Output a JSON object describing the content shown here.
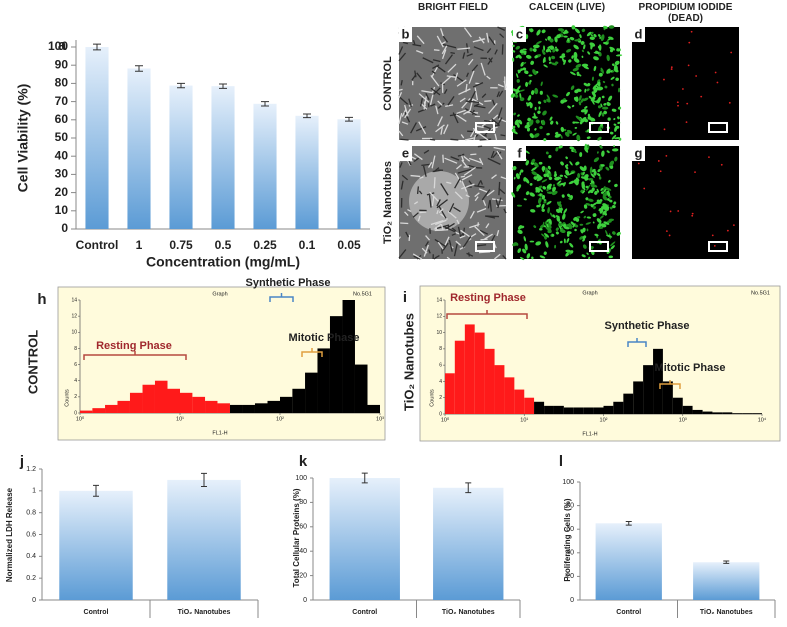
{
  "chart_data": [
    {
      "type": "bar",
      "panel": "a",
      "categories": [
        "Control",
        "1",
        "0.75",
        "0.5",
        "0.25",
        "0.1",
        "0.05"
      ],
      "values": [
        100,
        88.2,
        78.8,
        78.5,
        68.8,
        62.2,
        60.3
      ],
      "errors": [
        1.6,
        1.5,
        1.2,
        1.2,
        1.2,
        1,
        1
      ],
      "color": "#5b9bd5",
      "xlabel": "Concentration (mg/mL)",
      "ylabel": "Cell Viability (%)",
      "ylim": [
        0,
        100
      ],
      "yticks": [
        0,
        10,
        20,
        30,
        40,
        50,
        60,
        70,
        80,
        90,
        100
      ]
    },
    {
      "type": "histogram",
      "panel": "h",
      "side_label": "CONTROL",
      "header": "Graph",
      "sample": "No.5G1",
      "xlabel": "FL1-H",
      "ylabel": "Counts",
      "xscale": "log",
      "xlim": [
        1,
        1000
      ],
      "xticks": [
        {
          "value": 1,
          "label": "10⁰"
        },
        {
          "value": 10,
          "label": "10¹"
        },
        {
          "value": 100,
          "label": "10²"
        },
        {
          "value": 1000,
          "label": "10³"
        }
      ],
      "ylim": [
        0,
        14
      ],
      "yticks": [
        0,
        2,
        4,
        6,
        8,
        10,
        12,
        14
      ],
      "series": [
        {
          "color": "#ff1a1a",
          "bins": [
            1,
            1.33,
            1.78,
            2.37,
            3.16,
            4.22,
            5.62,
            7.5,
            10,
            13.3,
            17.8,
            23.7,
            31.6
          ],
          "counts": [
            0.3,
            0.6,
            1,
            1.5,
            2.5,
            3.5,
            4,
            3,
            2.5,
            2,
            1.5,
            1.2
          ]
        },
        {
          "color": "#000000",
          "bins": [
            31.6,
            42.2,
            56.2,
            75,
            100,
            133,
            178,
            237,
            316,
            422,
            562,
            750,
            1000
          ],
          "counts": [
            1,
            1,
            1.2,
            1.5,
            2,
            3,
            5,
            8,
            12,
            14,
            6,
            1
          ]
        }
      ],
      "annotations": [
        {
          "text": "Resting Phase",
          "color": "#a0282d",
          "bracket_color": "#b5493f"
        },
        {
          "text": "Synthetic Phase",
          "color": "#222222",
          "bracket_color": "#4a86c5"
        },
        {
          "text": "Mitotic Phase",
          "color": "#222222",
          "bracket_color": "#e0a040"
        }
      ]
    },
    {
      "type": "histogram",
      "panel": "i",
      "side_label": "TiO₂ Nanotubes",
      "header": "Graph",
      "sample": "No.5G1",
      "xlabel": "FL1-H",
      "ylabel": "Counts",
      "xscale": "log",
      "xlim": [
        1,
        10000
      ],
      "xticks": [
        {
          "value": 1,
          "label": "10⁰"
        },
        {
          "value": 10,
          "label": "10¹"
        },
        {
          "value": 100,
          "label": "10²"
        },
        {
          "value": 1000,
          "label": "10³"
        },
        {
          "value": 10000,
          "label": "10⁴"
        }
      ],
      "ylim": [
        0,
        14
      ],
      "yticks": [
        0,
        2,
        4,
        6,
        8,
        10,
        12,
        14
      ],
      "series": [
        {
          "color": "#ff1a1a",
          "bins": [
            1,
            1.33,
            1.78,
            2.37,
            3.16,
            4.22,
            5.62,
            7.5,
            10,
            13.3
          ],
          "counts": [
            5,
            9,
            11,
            10,
            8,
            6,
            4.5,
            3,
            2
          ]
        },
        {
          "color": "#000000",
          "bins": [
            13.3,
            17.8,
            23.7,
            31.6,
            42.2,
            56.2,
            75,
            100,
            133,
            178,
            237,
            316,
            422,
            562,
            750,
            1000,
            1330,
            1780,
            2370,
            3160,
            4220,
            5620,
            7500,
            10000
          ],
          "counts": [
            1.5,
            1,
            1,
            0.8,
            0.8,
            0.8,
            0.8,
            1,
            1.5,
            2.5,
            4,
            6,
            8,
            4,
            2,
            1,
            0.5,
            0.3,
            0.2,
            0.2,
            0.1,
            0.1,
            0.1
          ]
        }
      ],
      "annotations": [
        {
          "text": "Resting Phase",
          "color": "#a0282d",
          "bracket_color": "#b5493f"
        },
        {
          "text": "Synthetic Phase",
          "color": "#222222",
          "bracket_color": "#4a86c5"
        },
        {
          "text": "Mitotic Phase",
          "color": "#222222",
          "bracket_color": "#e0a040"
        }
      ]
    },
    {
      "type": "bar",
      "panel": "j",
      "categories": [
        "Control",
        "TiO₂ Nanotubes"
      ],
      "values": [
        1,
        1.1
      ],
      "errors": [
        0.05,
        0.06
      ],
      "color": "#5b9bd5",
      "ylabel": "Normalized LDH Release",
      "ylim": [
        0,
        1.2
      ],
      "yticks": [
        0,
        0.2,
        0.4,
        0.6,
        0.8,
        1,
        1.2
      ]
    },
    {
      "type": "bar",
      "panel": "k",
      "categories": [
        "Control",
        "TiO₂ Nanotubes"
      ],
      "values": [
        100,
        92
      ],
      "errors": [
        4,
        4
      ],
      "color": "#5b9bd5",
      "ylabel": "Total Cellular Proteins (%)",
      "ylim": [
        0,
        100
      ],
      "yticks": [
        0,
        20,
        40,
        60,
        80,
        100
      ]
    },
    {
      "type": "bar",
      "panel": "l",
      "categories": [
        "Control",
        "TiO₂ Nanotubes"
      ],
      "values": [
        65,
        32
      ],
      "errors": [
        1.5,
        1
      ],
      "color": "#5b9bd5",
      "ylabel": "Proliferating Cells (%)",
      "ylim": [
        0,
        100
      ],
      "yticks": [
        0,
        20,
        40,
        60,
        80,
        100
      ]
    }
  ],
  "images": {
    "columns": [
      "BRIGHT FIELD",
      "CALCEIN (LIVE)",
      "PROPIDIUM IODIDE (DEAD)"
    ],
    "rows": [
      "CONTROL",
      "TiO₂ Nanotubes"
    ],
    "panels": [
      "b",
      "c",
      "d",
      "e",
      "f",
      "g"
    ]
  }
}
